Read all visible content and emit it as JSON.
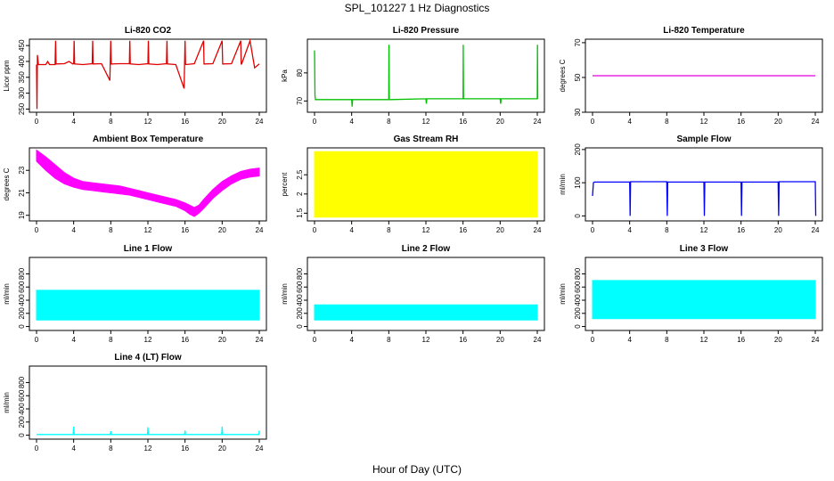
{
  "figure": {
    "title": "SPL_101227  1 Hz Diagnostics",
    "xlabel": "Hour of Day (UTC)"
  },
  "chart_data": [
    {
      "type": "line",
      "title": "Li-820 CO2",
      "ylabel": "Licor ppm",
      "color": "#e00000",
      "xlim": [
        0,
        24
      ],
      "ylim": [
        240,
        470
      ],
      "xticks": [
        0,
        4,
        8,
        12,
        16,
        20,
        24
      ],
      "yticks": [
        250,
        300,
        350,
        400,
        450
      ],
      "series": [
        {
          "x": [
            0,
            0.05,
            0.1,
            0.2,
            1,
            1.2,
            1.4,
            2,
            2.05,
            2.1,
            3,
            3.5,
            3.9,
            4,
            4.05,
            4.1,
            5,
            6,
            6.05,
            6.1,
            7,
            7.9,
            8,
            8.05,
            8.1,
            9,
            10,
            10.05,
            10.1,
            11,
            12,
            12.05,
            12.1,
            13,
            14,
            14.05,
            14.1,
            15,
            15.9,
            16,
            16.05,
            16.1,
            17,
            18,
            18.05,
            18.1,
            19,
            20,
            20.05,
            20.1,
            21,
            22,
            22.05,
            22.1,
            23,
            23.5,
            24
          ],
          "y": [
            390,
            250,
            420,
            390,
            390,
            400,
            390,
            390,
            465,
            392,
            393,
            400,
            392,
            393,
            465,
            392,
            390,
            393,
            465,
            392,
            393,
            340,
            465,
            392,
            392,
            393,
            393,
            465,
            392,
            390,
            393,
            465,
            392,
            390,
            393,
            465,
            392,
            390,
            315,
            465,
            392,
            390,
            393,
            465,
            392,
            392,
            393,
            465,
            392,
            392,
            393,
            465,
            392,
            392,
            465,
            380,
            392
          ]
        }
      ]
    },
    {
      "type": "line",
      "title": "Li-820 Pressure",
      "ylabel": "kPa",
      "color": "#00c000",
      "xlim": [
        0,
        24
      ],
      "ylim": [
        66,
        92
      ],
      "xticks": [
        0,
        4,
        8,
        12,
        16,
        20,
        24
      ],
      "yticks": [
        70,
        80
      ],
      "series": [
        {
          "x": [
            0,
            0.05,
            0.1,
            0.3,
            4,
            4.05,
            4.1,
            8,
            8.02,
            8.05,
            8.2,
            12,
            12.05,
            12.1,
            16,
            16.02,
            16.05,
            16.2,
            20,
            20.05,
            20.1,
            24,
            24.02,
            24.05
          ],
          "y": [
            88,
            72,
            70.5,
            70.5,
            70.5,
            68,
            70.5,
            70.5,
            90,
            70.5,
            70.5,
            70.8,
            69,
            70.8,
            70.8,
            90,
            70.8,
            70.8,
            70.8,
            69,
            70.8,
            70.8,
            90,
            70.8
          ]
        }
      ]
    },
    {
      "type": "line",
      "title": "Li-820 Temperature",
      "ylabel": "degrees C",
      "color": "#e000e0",
      "xlim": [
        0,
        24
      ],
      "ylim": [
        30,
        72
      ],
      "xticks": [
        0,
        4,
        8,
        12,
        16,
        20,
        24
      ],
      "yticks": [
        30,
        50,
        70
      ],
      "series": [
        {
          "x": [
            0,
            24
          ],
          "y": [
            51,
            51
          ]
        }
      ]
    },
    {
      "type": "area",
      "title": "Ambient Box Temperature",
      "ylabel": "degrees C",
      "color": "#ff00ff",
      "xlim": [
        0,
        24
      ],
      "ylim": [
        18.5,
        25
      ],
      "xticks": [
        0,
        4,
        8,
        12,
        16,
        20,
        24
      ],
      "yticks": [
        19,
        21,
        23
      ],
      "series": [
        {
          "x": [
            0,
            1,
            2,
            3,
            4,
            5,
            6,
            7,
            8,
            9,
            10,
            11,
            12,
            13,
            14,
            15,
            16,
            16.5,
            17,
            17.5,
            18,
            19,
            20,
            21,
            22,
            23,
            24
          ],
          "lower": [
            23.8,
            23.0,
            22.3,
            21.8,
            21.5,
            21.3,
            21.2,
            21.1,
            21.0,
            20.9,
            20.8,
            20.6,
            20.4,
            20.2,
            20.0,
            19.8,
            19.4,
            19.1,
            18.9,
            19.2,
            19.6,
            20.5,
            21.2,
            21.8,
            22.2,
            22.4,
            22.5
          ],
          "upper": [
            24.8,
            24.2,
            23.5,
            22.8,
            22.3,
            22.0,
            21.9,
            21.8,
            21.7,
            21.6,
            21.4,
            21.2,
            21.0,
            20.8,
            20.6,
            20.4,
            20.1,
            19.9,
            19.7,
            19.9,
            20.4,
            21.3,
            22.0,
            22.5,
            22.9,
            23.1,
            23.2
          ]
        }
      ]
    },
    {
      "type": "area",
      "title": "Gas Stream RH",
      "ylabel": "percent",
      "color": "#ffff00",
      "xlim": [
        0,
        24
      ],
      "ylim": [
        1.3,
        3.2
      ],
      "xticks": [
        0,
        4,
        8,
        12,
        16,
        20,
        24
      ],
      "yticks": [
        1.5,
        2.0,
        2.5
      ],
      "series": [
        {
          "x": [
            0,
            24
          ],
          "lower": [
            1.4,
            1.4
          ],
          "upper": [
            3.1,
            3.1
          ]
        }
      ]
    },
    {
      "type": "line",
      "title": "Sample Flow",
      "ylabel": "ml/min",
      "color": "#0000ff",
      "xlim": [
        0,
        24
      ],
      "ylim": [
        -15,
        205
      ],
      "xticks": [
        0,
        4,
        8,
        12,
        16,
        20,
        24
      ],
      "yticks": [
        0,
        100,
        200
      ],
      "series": [
        {
          "x": [
            0,
            0.1,
            0.2,
            4,
            4.05,
            4.1,
            8,
            8.05,
            8.1,
            12,
            12.05,
            12.1,
            16,
            16.05,
            16.1,
            20,
            20.05,
            20.1,
            24,
            24.05
          ],
          "y": [
            60,
            100,
            102,
            102,
            0,
            103,
            103,
            0,
            102,
            102,
            0,
            102,
            102,
            0,
            102,
            102,
            0,
            103,
            103,
            0
          ]
        }
      ]
    },
    {
      "type": "area",
      "title": "Line 1 Flow",
      "ylabel": "ml/min",
      "color": "#00ffff",
      "xlim": [
        0,
        24
      ],
      "ylim": [
        -60,
        1050
      ],
      "xticks": [
        0,
        4,
        8,
        12,
        16,
        20,
        24
      ],
      "yticks": [
        0,
        200,
        400,
        600,
        800
      ],
      "series": [
        {
          "x": [
            0,
            24
          ],
          "lower": [
            100,
            100
          ],
          "upper": [
            550,
            550
          ]
        }
      ]
    },
    {
      "type": "area",
      "title": "Line 2 Flow",
      "ylabel": "ml/min",
      "color": "#00ffff",
      "xlim": [
        0,
        24
      ],
      "ylim": [
        -60,
        1050
      ],
      "xticks": [
        0,
        4,
        8,
        12,
        16,
        20,
        24
      ],
      "yticks": [
        0,
        200,
        400,
        600,
        800
      ],
      "series": [
        {
          "x": [
            0,
            24
          ],
          "lower": [
            100,
            100
          ],
          "upper": [
            330,
            330
          ]
        }
      ]
    },
    {
      "type": "area",
      "title": "Line 3 Flow",
      "ylabel": "ml/min",
      "color": "#00ffff",
      "xlim": [
        0,
        24
      ],
      "ylim": [
        -60,
        1050
      ],
      "xticks": [
        0,
        4,
        8,
        12,
        16,
        20,
        24
      ],
      "yticks": [
        0,
        200,
        400,
        600,
        800
      ],
      "series": [
        {
          "x": [
            0,
            24
          ],
          "lower": [
            120,
            120
          ],
          "upper": [
            700,
            700
          ]
        }
      ]
    },
    {
      "type": "line",
      "title": "Line 4 (LT) Flow",
      "ylabel": "ml/min",
      "color": "#00ffff",
      "xlim": [
        0,
        24
      ],
      "ylim": [
        -60,
        1050
      ],
      "xticks": [
        0,
        4,
        8,
        12,
        16,
        20,
        24
      ],
      "yticks": [
        0,
        200,
        400,
        600,
        800
      ],
      "series": [
        {
          "x": [
            0,
            3.95,
            4,
            4.05,
            7.95,
            8,
            8.05,
            11.95,
            12,
            12.05,
            15.95,
            16,
            16.05,
            19.95,
            20,
            20.05,
            23.95,
            24
          ],
          "y": [
            10,
            10,
            130,
            10,
            10,
            60,
            10,
            10,
            120,
            10,
            10,
            70,
            10,
            10,
            130,
            10,
            10,
            70
          ]
        }
      ]
    }
  ]
}
